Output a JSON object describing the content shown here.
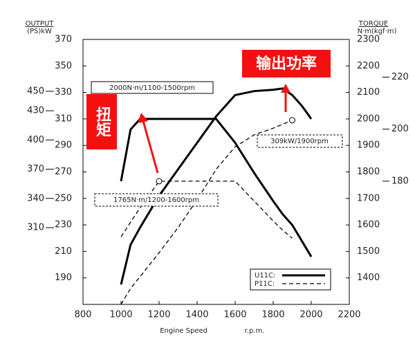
{
  "chart_data": {
    "type": "line",
    "y_label": "OUTPUT",
    "y_unit": "(PS)kW",
    "y2_label": "TORQUE",
    "y2_unit": "N·m(kgf·m)",
    "x_label": "Engine Speed",
    "x_unit": "r.p.m.",
    "x": [
      1000,
      1050,
      1100,
      1200,
      1300,
      1400,
      1500,
      1600,
      1700,
      1800,
      1850,
      1900,
      1950,
      2000
    ],
    "xlim": [
      800,
      2200
    ],
    "xticks": [
      800,
      1000,
      1200,
      1400,
      1600,
      1800,
      2000,
      2200
    ],
    "ylim": [
      170,
      370
    ],
    "yticks": [
      190,
      210,
      230,
      250,
      270,
      290,
      310,
      330,
      350,
      370
    ],
    "y2lim": [
      1300,
      2300
    ],
    "y2ticks": [
      1400,
      1500,
      1600,
      1700,
      1800,
      1900,
      2000,
      2100,
      2200,
      2300
    ],
    "ps_lim": [
      231.2,
      503.2
    ],
    "ps_ticks": [
      310,
      340,
      370,
      400,
      430,
      450
    ],
    "kgfm_lim": [
      132.6,
      234.5
    ],
    "kgfm_ticks": [
      180,
      200,
      220
    ],
    "series": [
      {
        "name": "U11C:",
        "color": "#000000",
        "dashed": false,
        "values": [
          185,
          215,
          228,
          252,
          272,
          292,
          312,
          328,
          331,
          332,
          333,
          328,
          320,
          310
        ],
        "torque": [
          1765,
          1960,
          2000,
          2000,
          2000,
          2000,
          2000,
          1910,
          1796,
          1690,
          1640,
          1600,
          1540,
          1480
        ]
      },
      {
        "name": "P11C:",
        "color": "#000000",
        "dashed": true,
        "values": [
          170,
          182,
          191,
          209,
          228,
          249,
          272,
          289,
          298,
          303,
          306,
          309,
          null,
          null
        ],
        "torque": [
          1555,
          1610,
          1665,
          1765,
          1765,
          1765,
          1765,
          1765,
          1690,
          1615,
          1580,
          1550,
          null,
          null
        ]
      }
    ],
    "annotations": [
      "2000N·m/1100-1500rpm",
      "309kW/1900rpm",
      "1765N·m/1200-1600rpm"
    ],
    "callouts": [
      "扭矩",
      "输出功率"
    ]
  }
}
